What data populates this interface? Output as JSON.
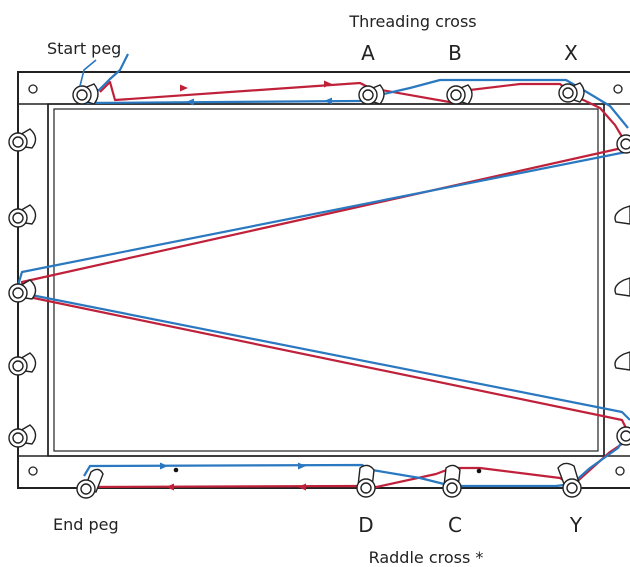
{
  "labels": {
    "threading_cross": "Threading cross",
    "start_peg": "Start peg",
    "end_peg": "End peg",
    "raddle_cross": "Raddle cross *",
    "peg_a": "A",
    "peg_b": "B",
    "peg_x": "X",
    "peg_d": "D",
    "peg_c": "C",
    "peg_y": "Y"
  },
  "colors": {
    "red_thread": "#c0213a",
    "blue_thread": "#2a78c0",
    "frame": "#222222",
    "peg_fill": "#ffffff"
  },
  "icons": {
    "peg": "peg-icon",
    "screw": "screw-icon",
    "arrow": "arrow-icon"
  }
}
